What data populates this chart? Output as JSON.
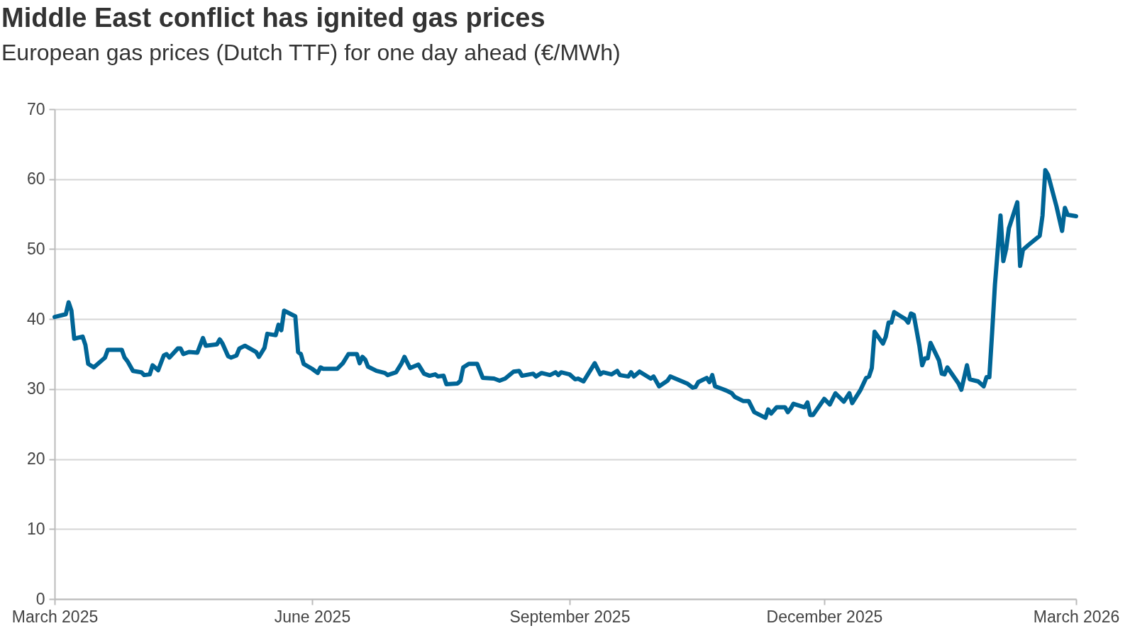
{
  "chart_data": {
    "type": "line",
    "title": "Middle East conflict has ignited gas prices",
    "subtitle": "European gas prices (Dutch TTF) for one day ahead (€/MWh)",
    "xlim": [
      "2025-03-01",
      "2026-03-01"
    ],
    "xticks": [
      {
        "value": "2025-03-01",
        "label": "March 2025"
      },
      {
        "value": "2025-06-01",
        "label": "June 2025"
      },
      {
        "value": "2025-09-01",
        "label": "September 2025"
      },
      {
        "value": "2025-12-01",
        "label": "December 2025"
      },
      {
        "value": "2026-03-01",
        "label": "March 2026"
      }
    ],
    "ylim": [
      0,
      70
    ],
    "yticks": [
      0,
      10,
      20,
      30,
      40,
      50,
      60,
      70
    ],
    "grid": "y",
    "marker": "none",
    "line_style": "solid",
    "x": [
      "2025-03-01",
      "2025-03-05",
      "2025-03-06",
      "2025-03-07",
      "2025-03-08",
      "2025-03-11",
      "2025-03-12",
      "2025-03-13",
      "2025-03-15",
      "2025-03-19",
      "2025-03-20",
      "2025-03-25",
      "2025-03-26",
      "2025-03-27",
      "2025-03-29",
      "2025-04-01",
      "2025-04-02",
      "2025-04-04",
      "2025-04-05",
      "2025-04-07",
      "2025-04-09",
      "2025-04-10",
      "2025-04-11",
      "2025-04-14",
      "2025-04-15",
      "2025-04-16",
      "2025-04-18",
      "2025-04-21",
      "2025-04-23",
      "2025-04-24",
      "2025-04-28",
      "2025-04-29",
      "2025-04-30",
      "2025-05-02",
      "2025-05-03",
      "2025-05-05",
      "2025-05-06",
      "2025-05-08",
      "2025-05-12",
      "2025-05-13",
      "2025-05-15",
      "2025-05-16",
      "2025-05-19",
      "2025-05-20",
      "2025-05-21",
      "2025-05-22",
      "2025-05-24",
      "2025-05-26",
      "2025-05-27",
      "2025-05-28",
      "2025-05-29",
      "2025-06-01",
      "2025-06-03",
      "2025-06-04",
      "2025-06-05",
      "2025-06-10",
      "2025-06-12",
      "2025-06-14",
      "2025-06-17",
      "2025-06-18",
      "2025-06-19",
      "2025-06-20",
      "2025-06-21",
      "2025-06-24",
      "2025-06-27",
      "2025-06-28",
      "2025-07-01",
      "2025-07-03",
      "2025-07-04",
      "2025-07-06",
      "2025-07-09",
      "2025-07-11",
      "2025-07-13",
      "2025-07-15",
      "2025-07-16",
      "2025-07-18",
      "2025-07-19",
      "2025-07-23",
      "2025-07-24",
      "2025-07-25",
      "2025-07-27",
      "2025-07-30",
      "2025-08-01",
      "2025-08-05",
      "2025-08-07",
      "2025-08-09",
      "2025-08-12",
      "2025-08-14",
      "2025-08-15",
      "2025-08-19",
      "2025-08-20",
      "2025-08-22",
      "2025-08-25",
      "2025-08-27",
      "2025-08-28",
      "2025-08-29",
      "2025-09-01",
      "2025-09-03",
      "2025-09-04",
      "2025-09-06",
      "2025-09-10",
      "2025-09-12",
      "2025-09-13",
      "2025-09-16",
      "2025-09-18",
      "2025-09-19",
      "2025-09-22",
      "2025-09-23",
      "2025-09-24",
      "2025-09-26",
      "2025-09-30",
      "2025-10-01",
      "2025-10-03",
      "2025-10-06",
      "2025-10-07",
      "2025-10-13",
      "2025-10-15",
      "2025-10-16",
      "2025-10-17",
      "2025-10-20",
      "2025-10-21",
      "2025-10-22",
      "2025-10-23",
      "2025-10-27",
      "2025-10-29",
      "2025-10-30",
      "2025-11-02",
      "2025-11-04",
      "2025-11-06",
      "2025-11-10",
      "2025-11-11",
      "2025-11-12",
      "2025-11-14",
      "2025-11-17",
      "2025-11-18",
      "2025-11-19",
      "2025-11-20",
      "2025-11-24",
      "2025-11-25",
      "2025-11-26",
      "2025-11-27",
      "2025-12-01",
      "2025-12-03",
      "2025-12-05",
      "2025-12-08",
      "2025-12-10",
      "2025-12-11",
      "2025-12-14",
      "2025-12-16",
      "2025-12-17",
      "2025-12-18",
      "2025-12-19",
      "2025-12-22",
      "2025-12-23",
      "2025-12-24",
      "2025-12-25",
      "2025-12-26",
      "2025-12-30",
      "2025-12-31",
      "2026-01-01",
      "2026-01-02",
      "2026-01-04",
      "2026-01-05",
      "2026-01-06",
      "2026-01-07",
      "2026-01-08",
      "2026-01-11",
      "2026-01-12",
      "2026-01-13",
      "2026-01-14",
      "2026-01-18",
      "2026-01-19",
      "2026-01-21",
      "2026-01-22",
      "2026-01-25",
      "2026-01-27",
      "2026-01-28",
      "2026-01-29",
      "2026-01-30",
      "2026-01-31",
      "2026-02-01",
      "2026-02-02",
      "2026-02-03",
      "2026-02-04",
      "2026-02-05",
      "2026-02-08",
      "2026-02-09",
      "2026-02-10",
      "2026-02-12",
      "2026-02-16",
      "2026-02-17",
      "2026-02-18",
      "2026-02-19",
      "2026-02-22",
      "2026-02-24",
      "2026-02-25",
      "2026-02-26",
      "2026-03-01"
    ],
    "series": [
      {
        "color": "#006596",
        "values": [
          40.3,
          40.7,
          42.4,
          41.2,
          37.2,
          37.5,
          36.3,
          33.6,
          33.1,
          34.5,
          35.6,
          35.6,
          34.5,
          34.0,
          32.6,
          32.4,
          32.0,
          32.1,
          33.4,
          32.7,
          34.8,
          35.0,
          34.5,
          35.8,
          35.8,
          35.0,
          35.3,
          35.2,
          37.3,
          36.2,
          36.4,
          37.1,
          36.5,
          34.7,
          34.5,
          34.8,
          35.8,
          36.2,
          35.3,
          34.6,
          35.9,
          37.9,
          37.7,
          39.2,
          38.4,
          41.2,
          40.8,
          40.4,
          35.3,
          35.0,
          33.6,
          32.9,
          32.3,
          33.1,
          32.9,
          32.9,
          33.7,
          35.0,
          35.0,
          33.7,
          34.6,
          34.2,
          33.2,
          32.6,
          32.3,
          32.0,
          32.4,
          33.7,
          34.6,
          33.0,
          33.5,
          32.2,
          31.9,
          32.1,
          31.8,
          31.9,
          30.7,
          30.8,
          31.2,
          33.1,
          33.6,
          33.6,
          31.6,
          31.5,
          31.2,
          31.5,
          32.5,
          32.6,
          31.9,
          32.2,
          31.8,
          32.3,
          32.0,
          32.4,
          32.0,
          32.4,
          32.1,
          31.4,
          31.5,
          31.1,
          33.7,
          32.1,
          32.4,
          32.1,
          32.6,
          32.0,
          31.8,
          32.4,
          31.8,
          32.5,
          31.5,
          31.8,
          30.4,
          31.2,
          31.8,
          30.8,
          30.2,
          30.3,
          31.0,
          31.6,
          31.0,
          32.0,
          30.4,
          29.8,
          29.4,
          28.9,
          28.3,
          28.3,
          26.7,
          25.9,
          27.1,
          26.5,
          27.4,
          27.4,
          26.7,
          27.2,
          27.9,
          27.4,
          28.1,
          26.3,
          26.3,
          28.6,
          27.8,
          29.4,
          28.2,
          29.4,
          28.0,
          29.9,
          31.6,
          31.8,
          33.0,
          38.2,
          36.5,
          37.5,
          39.5,
          39.5,
          41.0,
          40.0,
          39.5,
          40.8,
          40.6,
          36.2,
          33.4,
          34.4,
          34.4,
          36.6,
          34.1,
          32.2,
          32.1,
          33.1,
          30.8,
          29.9,
          33.4,
          31.4,
          31.1,
          30.4,
          31.7,
          31.7,
          38.1,
          44.9,
          49.9,
          54.8,
          48.3,
          50.0,
          53.0,
          56.7,
          47.6,
          49.9,
          50.6,
          51.9,
          54.8,
          61.3,
          60.6,
          56.1,
          52.6,
          55.9,
          54.9,
          54.7
        ]
      }
    ]
  }
}
